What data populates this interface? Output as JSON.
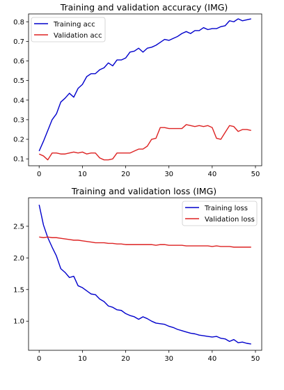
{
  "chart_data": [
    {
      "type": "line",
      "title": "Training and validation accuracy (IMG)",
      "xlabel": "",
      "ylabel": "",
      "xlim": [
        -2.45,
        51.45
      ],
      "ylim": [
        0.065,
        0.84
      ],
      "xticks": [
        0,
        10,
        20,
        30,
        40,
        50
      ],
      "yticks": [
        0.1,
        0.2,
        0.3,
        0.4,
        0.5,
        0.6,
        0.7,
        0.8
      ],
      "ytick_labels": [
        "0.1",
        "0.2",
        "0.3",
        "0.4",
        "0.5",
        "0.6",
        "0.7",
        "0.8"
      ],
      "grid": false,
      "legend": "top-left",
      "x": [
        0,
        1,
        2,
        3,
        4,
        5,
        6,
        7,
        8,
        9,
        10,
        11,
        12,
        13,
        14,
        15,
        16,
        17,
        18,
        19,
        20,
        21,
        22,
        23,
        24,
        25,
        26,
        27,
        28,
        29,
        30,
        31,
        32,
        33,
        34,
        35,
        36,
        37,
        38,
        39,
        40,
        41,
        42,
        43,
        44,
        45,
        46,
        47,
        48,
        49
      ],
      "series": [
        {
          "name": "Training acc",
          "color": "#0000cc",
          "values": [
            0.14,
            0.19,
            0.245,
            0.3,
            0.33,
            0.39,
            0.41,
            0.435,
            0.415,
            0.46,
            0.48,
            0.52,
            0.535,
            0.535,
            0.555,
            0.565,
            0.59,
            0.575,
            0.605,
            0.605,
            0.615,
            0.645,
            0.65,
            0.665,
            0.645,
            0.665,
            0.67,
            0.68,
            0.695,
            0.71,
            0.705,
            0.715,
            0.725,
            0.74,
            0.75,
            0.74,
            0.755,
            0.755,
            0.77,
            0.76,
            0.765,
            0.765,
            0.775,
            0.78,
            0.805,
            0.8,
            0.815,
            0.805,
            0.81,
            0.815
          ]
        },
        {
          "name": "Validation acc",
          "color": "#dd2222",
          "values": [
            0.125,
            0.115,
            0.095,
            0.13,
            0.13,
            0.125,
            0.125,
            0.13,
            0.135,
            0.13,
            0.135,
            0.125,
            0.13,
            0.13,
            0.105,
            0.095,
            0.095,
            0.1,
            0.13,
            0.13,
            0.13,
            0.13,
            0.14,
            0.15,
            0.15,
            0.165,
            0.2,
            0.205,
            0.26,
            0.26,
            0.255,
            0.255,
            0.255,
            0.255,
            0.275,
            0.27,
            0.265,
            0.27,
            0.265,
            0.27,
            0.26,
            0.205,
            0.2,
            0.235,
            0.27,
            0.265,
            0.24,
            0.25,
            0.25,
            0.245
          ]
        }
      ]
    },
    {
      "type": "line",
      "title": "Training and validation loss (IMG)",
      "xlabel": "",
      "ylabel": "",
      "xlim": [
        -2.45,
        51.45
      ],
      "ylim": [
        0.54,
        2.95
      ],
      "xticks": [
        0,
        10,
        20,
        30,
        40,
        50
      ],
      "yticks": [
        1.0,
        1.5,
        2.0,
        2.5
      ],
      "ytick_labels": [
        "1.0",
        "1.5",
        "2.0",
        "2.5"
      ],
      "grid": false,
      "legend": "top-right",
      "x": [
        0,
        1,
        2,
        3,
        4,
        5,
        6,
        7,
        8,
        9,
        10,
        11,
        12,
        13,
        14,
        15,
        16,
        17,
        18,
        19,
        20,
        21,
        22,
        23,
        24,
        25,
        26,
        27,
        28,
        29,
        30,
        31,
        32,
        33,
        34,
        35,
        36,
        37,
        38,
        39,
        40,
        41,
        42,
        43,
        44,
        45,
        46,
        47,
        48,
        49
      ],
      "series": [
        {
          "name": "Training loss",
          "color": "#0000cc",
          "values": [
            2.84,
            2.52,
            2.32,
            2.17,
            2.03,
            1.83,
            1.77,
            1.69,
            1.71,
            1.56,
            1.53,
            1.48,
            1.43,
            1.42,
            1.35,
            1.31,
            1.24,
            1.22,
            1.18,
            1.17,
            1.12,
            1.09,
            1.07,
            1.03,
            1.07,
            1.04,
            1.0,
            0.97,
            0.96,
            0.95,
            0.92,
            0.9,
            0.87,
            0.85,
            0.83,
            0.81,
            0.8,
            0.78,
            0.77,
            0.76,
            0.75,
            0.76,
            0.73,
            0.72,
            0.68,
            0.71,
            0.66,
            0.67,
            0.65,
            0.64
          ]
        },
        {
          "name": "Validation loss",
          "color": "#dd2222",
          "values": [
            2.33,
            2.32,
            2.33,
            2.32,
            2.32,
            2.31,
            2.3,
            2.29,
            2.28,
            2.28,
            2.27,
            2.26,
            2.25,
            2.24,
            2.24,
            2.24,
            2.23,
            2.23,
            2.22,
            2.22,
            2.21,
            2.21,
            2.21,
            2.21,
            2.21,
            2.21,
            2.21,
            2.2,
            2.21,
            2.21,
            2.2,
            2.2,
            2.2,
            2.2,
            2.19,
            2.19,
            2.19,
            2.19,
            2.19,
            2.19,
            2.18,
            2.19,
            2.18,
            2.18,
            2.18,
            2.17,
            2.17,
            2.17,
            2.17,
            2.17
          ]
        }
      ]
    }
  ]
}
